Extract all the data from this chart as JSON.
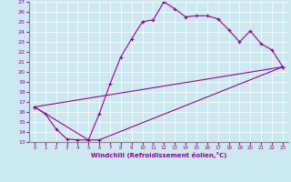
{
  "xlabel": "Windchill (Refroidissement éolien,°C)",
  "bg_color": "#cce8f0",
  "line_color": "#990099",
  "xlim": [
    -0.5,
    23.5
  ],
  "ylim": [
    13,
    27
  ],
  "xticks": [
    0,
    1,
    2,
    3,
    4,
    5,
    6,
    7,
    8,
    9,
    10,
    11,
    12,
    13,
    14,
    15,
    16,
    17,
    18,
    19,
    20,
    21,
    22,
    23
  ],
  "yticks": [
    13,
    14,
    15,
    16,
    17,
    18,
    19,
    20,
    21,
    22,
    23,
    24,
    25,
    26,
    27
  ],
  "line1_x": [
    0,
    1,
    2,
    3,
    4,
    5,
    6,
    7,
    8,
    9,
    10,
    11,
    12,
    13,
    14,
    15,
    16,
    17,
    18,
    19,
    20,
    21,
    22,
    23
  ],
  "line1_y": [
    16.5,
    15.8,
    14.3,
    13.3,
    13.2,
    13.2,
    15.8,
    18.8,
    21.5,
    23.3,
    25.0,
    25.2,
    27.0,
    26.3,
    25.5,
    25.6,
    25.6,
    25.3,
    24.2,
    23.0,
    24.1,
    22.8,
    22.2,
    20.5
  ],
  "line2_x": [
    0,
    5,
    6,
    23
  ],
  "line2_y": [
    16.5,
    13.2,
    13.2,
    20.5
  ],
  "line3_x": [
    0,
    23
  ],
  "line3_y": [
    16.5,
    20.5
  ]
}
